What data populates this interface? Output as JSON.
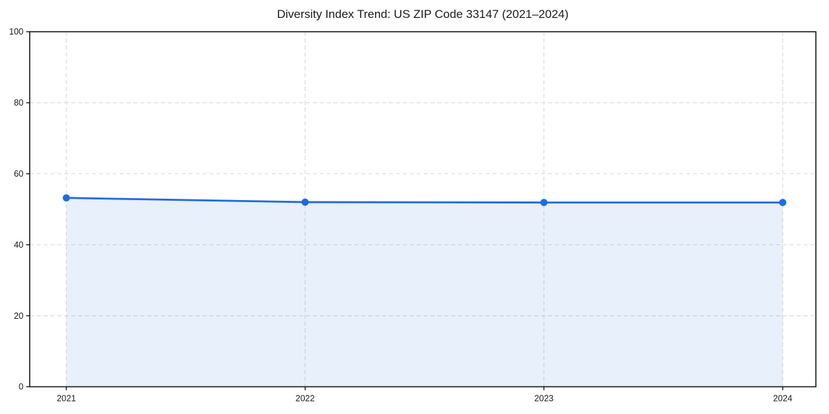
{
  "chart_data": {
    "type": "area",
    "categories": [
      "2021",
      "2022",
      "2023",
      "2024"
    ],
    "values": [
      53.2,
      52.0,
      51.9,
      51.9
    ],
    "series_name": "Diversity Index",
    "title": "Diversity Index Trend: US ZIP Code 33147 (2021–2024)",
    "xlabel": "",
    "ylabel": "",
    "ylim": [
      0,
      100
    ],
    "yticks": [
      0,
      20,
      40,
      60,
      80,
      100
    ],
    "grid": "dashed",
    "legend": "none",
    "colors": {
      "line": "#1f6be0",
      "fill": "#1f6be0",
      "fill_opacity": 0.1,
      "grid": "#dcdcdc",
      "axis": "#1a1a1a",
      "text": "#1a1a1a",
      "background": "#ffffff"
    }
  }
}
